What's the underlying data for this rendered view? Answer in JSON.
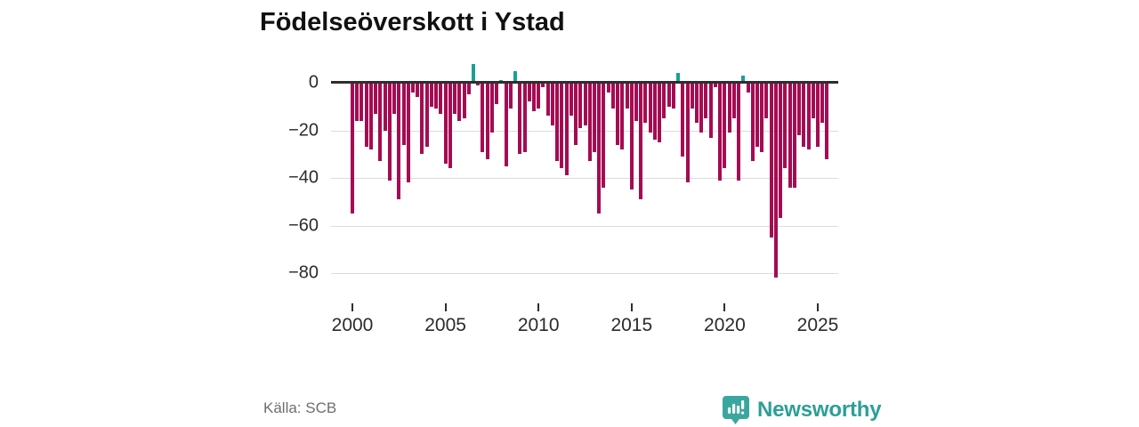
{
  "title": "Födelseöverskott i Ystad",
  "source": "Källa: SCB",
  "logo": {
    "text": "Newsworthy"
  },
  "chart_data": {
    "type": "bar",
    "title": "Födelseöverskott i Ystad",
    "xlabel": "",
    "ylabel": "",
    "frequency": "quarterly",
    "start_year": 2000,
    "start_quarter": 1,
    "values": [
      -55,
      -16,
      -16,
      -27,
      -28,
      -13,
      -33,
      -20,
      -41,
      -13,
      -49,
      -26,
      -42,
      -4,
      -6,
      -30,
      -27,
      -10,
      -11,
      -13,
      -34,
      -36,
      -13,
      -16,
      -15,
      -5,
      8,
      -1,
      -29,
      -32,
      -21,
      -9,
      1,
      -35,
      -11,
      5,
      -30,
      -29,
      -8,
      -12,
      -11,
      -2,
      -14,
      -18,
      -33,
      -36,
      -39,
      -14,
      -26,
      -19,
      -18,
      -33,
      -29,
      -55,
      -44,
      -4,
      -11,
      -26,
      -28,
      -11,
      -45,
      -16,
      -49,
      -17,
      -21,
      -24,
      -25,
      -15,
      -10,
      -11,
      4,
      -31,
      -42,
      -11,
      -17,
      -21,
      -15,
      -23,
      -2,
      -41,
      -36,
      -21,
      -15,
      -41,
      3,
      -4,
      -33,
      -27,
      -29,
      -15,
      -65,
      -82,
      -57,
      -36,
      -44,
      -44,
      -22,
      -27,
      -28,
      -15,
      -27,
      -17,
      -32
    ],
    "y_ticks": [
      0,
      -20,
      -40,
      -60,
      -80
    ],
    "y_tick_labels": [
      "0",
      "−20",
      "−40",
      "−60",
      "−80"
    ],
    "ylim": [
      -88,
      10
    ],
    "x_tick_years": [
      2000,
      2005,
      2010,
      2015,
      2020,
      2025
    ],
    "x_tick_labels": [
      "2000",
      "2005",
      "2010",
      "2015",
      "2020",
      "2025"
    ],
    "grid": true,
    "legend": "none",
    "colors": {
      "negative": "#a50b52",
      "positive": "#18a195",
      "axis": "#2e2e2e",
      "gridline": "#dcdcdc"
    }
  }
}
